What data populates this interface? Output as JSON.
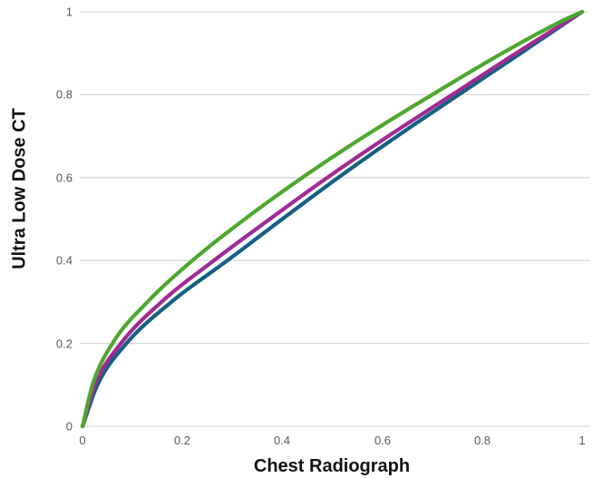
{
  "chart_data": {
    "type": "line",
    "title": "",
    "xlabel": "Chest Radiograph",
    "ylabel": "Ultra Low Dose CT",
    "xlim": [
      0,
      1
    ],
    "ylim": [
      0,
      1
    ],
    "grid": "horizontal-only",
    "legend": "none",
    "gridline_color": "#d9d9d9",
    "tick_label_color": "#595959",
    "x_tick_labels": [
      "0",
      "0.2",
      "0.4",
      "0.6",
      "0.8",
      "1"
    ],
    "y_tick_labels_top_to_bottom": [
      "1",
      "0.8",
      "0.6",
      "0.4",
      "0.2",
      "0"
    ],
    "x_tick_values": [
      0,
      0.2,
      0.4,
      0.6,
      0.8,
      1
    ],
    "y_tick_values": [
      0,
      0.2,
      0.4,
      0.6,
      0.8,
      1
    ],
    "series": [
      {
        "name": "blue-curve",
        "color": "#156082",
        "points": [
          [
            0,
            0
          ],
          [
            0.03,
            0.1
          ],
          [
            0.088,
            0.2
          ],
          [
            0.178,
            0.3
          ],
          [
            0.29,
            0.4
          ],
          [
            0.4,
            0.5
          ],
          [
            0.512,
            0.6
          ],
          [
            0.63,
            0.7
          ],
          [
            0.753,
            0.8
          ],
          [
            0.877,
            0.9
          ],
          [
            1,
            1
          ]
        ]
      },
      {
        "name": "magenta-curve",
        "color": "#A02B93",
        "points": [
          [
            0,
            0
          ],
          [
            0.025,
            0.1
          ],
          [
            0.077,
            0.2
          ],
          [
            0.158,
            0.3
          ],
          [
            0.263,
            0.4
          ],
          [
            0.375,
            0.5
          ],
          [
            0.49,
            0.6
          ],
          [
            0.612,
            0.7
          ],
          [
            0.74,
            0.8
          ],
          [
            0.868,
            0.9
          ],
          [
            1,
            1
          ]
        ]
      },
      {
        "name": "green-curve",
        "color": "#4EA72E",
        "points": [
          [
            0,
            0
          ],
          [
            0.02,
            0.1
          ],
          [
            0.06,
            0.2
          ],
          [
            0.13,
            0.3
          ],
          [
            0.22,
            0.4
          ],
          [
            0.325,
            0.5
          ],
          [
            0.44,
            0.6
          ],
          [
            0.565,
            0.7
          ],
          [
            0.7,
            0.8
          ],
          [
            0.84,
            0.9
          ],
          [
            0.955,
            0.975
          ],
          [
            1,
            1
          ]
        ]
      }
    ]
  }
}
